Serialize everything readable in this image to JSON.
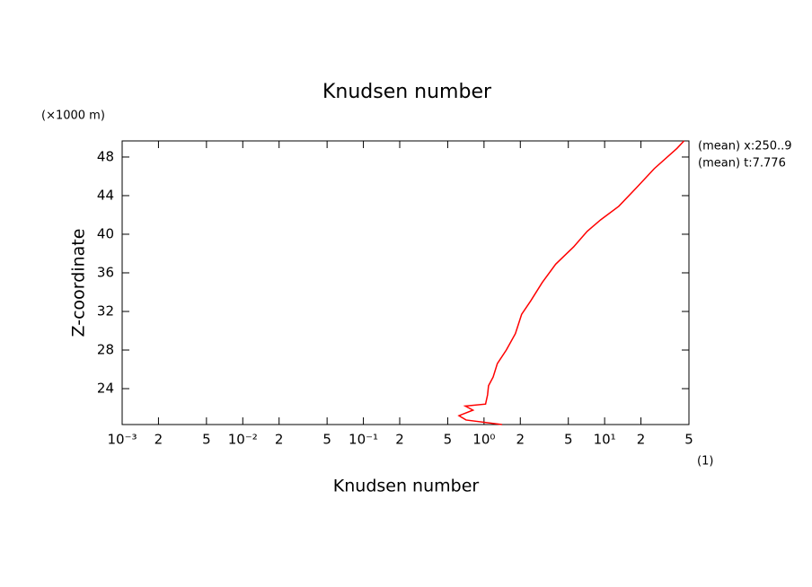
{
  "chart_data": {
    "type": "line",
    "title": "Knudsen number",
    "x_label": "Knudsen number",
    "y_label": "Z-coordinate",
    "y_unit": "(×1000 m)",
    "x_unit": "(1)",
    "annotations": [
      "(mean) x:250..9",
      "(mean) t:7.776"
    ],
    "xlog": true,
    "xlim": [
      0.001,
      50
    ],
    "xticks": [
      {
        "value": 0.001,
        "label": "10⁻³"
      },
      {
        "value": 0.002,
        "label": "2"
      },
      {
        "value": 0.005,
        "label": "5"
      },
      {
        "value": 0.01,
        "label": "10⁻²"
      },
      {
        "value": 0.02,
        "label": "2"
      },
      {
        "value": 0.05,
        "label": "5"
      },
      {
        "value": 0.1,
        "label": "10⁻¹"
      },
      {
        "value": 0.2,
        "label": "2"
      },
      {
        "value": 0.5,
        "label": "5"
      },
      {
        "value": 1,
        "label": "10⁰"
      },
      {
        "value": 2,
        "label": "2"
      },
      {
        "value": 5,
        "label": "5"
      },
      {
        "value": 10,
        "label": "10¹"
      },
      {
        "value": 20,
        "label": "2"
      },
      {
        "value": 50,
        "label": "5"
      }
    ],
    "ylim": [
      20.28,
      49.67
    ],
    "yticks": [
      24,
      28,
      32,
      36,
      40,
      44,
      48
    ],
    "color": "#ff0000",
    "x": [
      1.41,
      0.71,
      0.62,
      0.81,
      0.7,
      1.03,
      1.07,
      1.09,
      1.19,
      1.29,
      1.53,
      1.82,
      2.05,
      2.44,
      3.04,
      3.93,
      5.54,
      7.16,
      9.28,
      13.1,
      18.3,
      25.8,
      39.8,
      45.5
    ],
    "values": [
      20.28,
      20.75,
      21.2,
      21.77,
      22.2,
      22.4,
      23.35,
      24.3,
      25.2,
      26.6,
      28.0,
      29.7,
      31.7,
      33.1,
      35.0,
      36.9,
      38.7,
      40.3,
      41.5,
      42.9,
      44.8,
      46.8,
      48.9,
      49.67
    ]
  }
}
